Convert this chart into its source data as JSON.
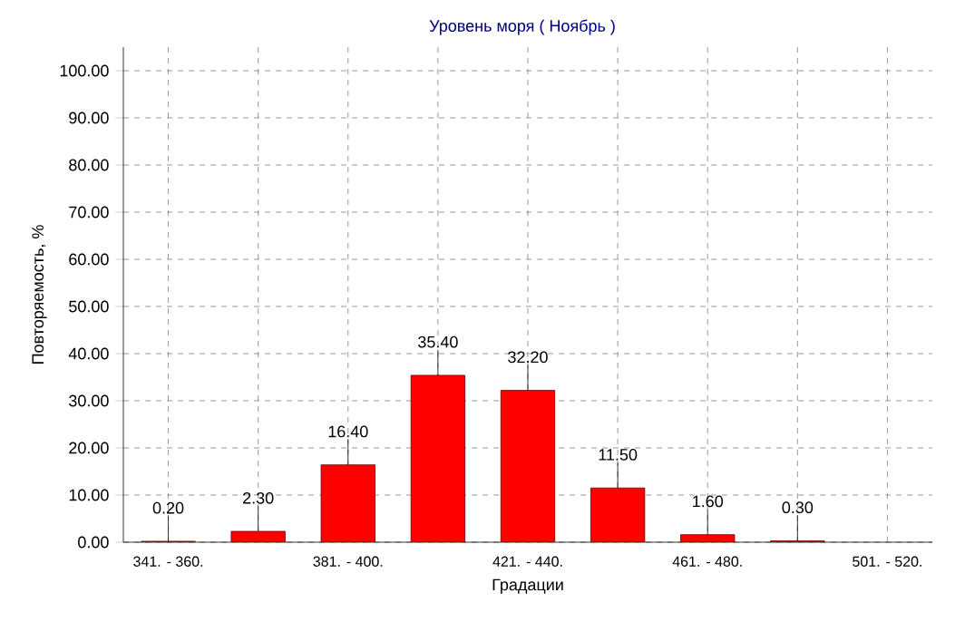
{
  "chart_data": {
    "type": "bar",
    "title": "Уровень моря    ( Ноябрь )",
    "xlabel": "Градации",
    "ylabel": "Повторяемость, %",
    "categories": [
      "341. - 360.",
      null,
      "381. - 400.",
      null,
      "421. - 440.",
      null,
      "461. - 480.",
      null,
      "501. - 520."
    ],
    "values": [
      0.2,
      2.3,
      16.4,
      35.4,
      32.2,
      11.5,
      1.6,
      0.3,
      null
    ],
    "value_labels": [
      "0.20",
      "2.30",
      "16.40",
      "35.40",
      "32.20",
      "11.50",
      "1.60",
      "0.30",
      null
    ],
    "color": "#ff0000",
    "ylim": [
      0,
      105
    ],
    "yticks": [
      {
        "value": 0,
        "label": "0.00"
      },
      {
        "value": 10,
        "label": "10.00"
      },
      {
        "value": 20,
        "label": "20.00"
      },
      {
        "value": 30,
        "label": "30.00"
      },
      {
        "value": 40,
        "label": "40.00"
      },
      {
        "value": 50,
        "label": "50.00"
      },
      {
        "value": 60,
        "label": "60.00"
      },
      {
        "value": 70,
        "label": "70.00"
      },
      {
        "value": 80,
        "label": "80.00"
      },
      {
        "value": 90,
        "label": "90.00"
      },
      {
        "value": 100,
        "label": "100.00"
      }
    ],
    "grid": true
  }
}
